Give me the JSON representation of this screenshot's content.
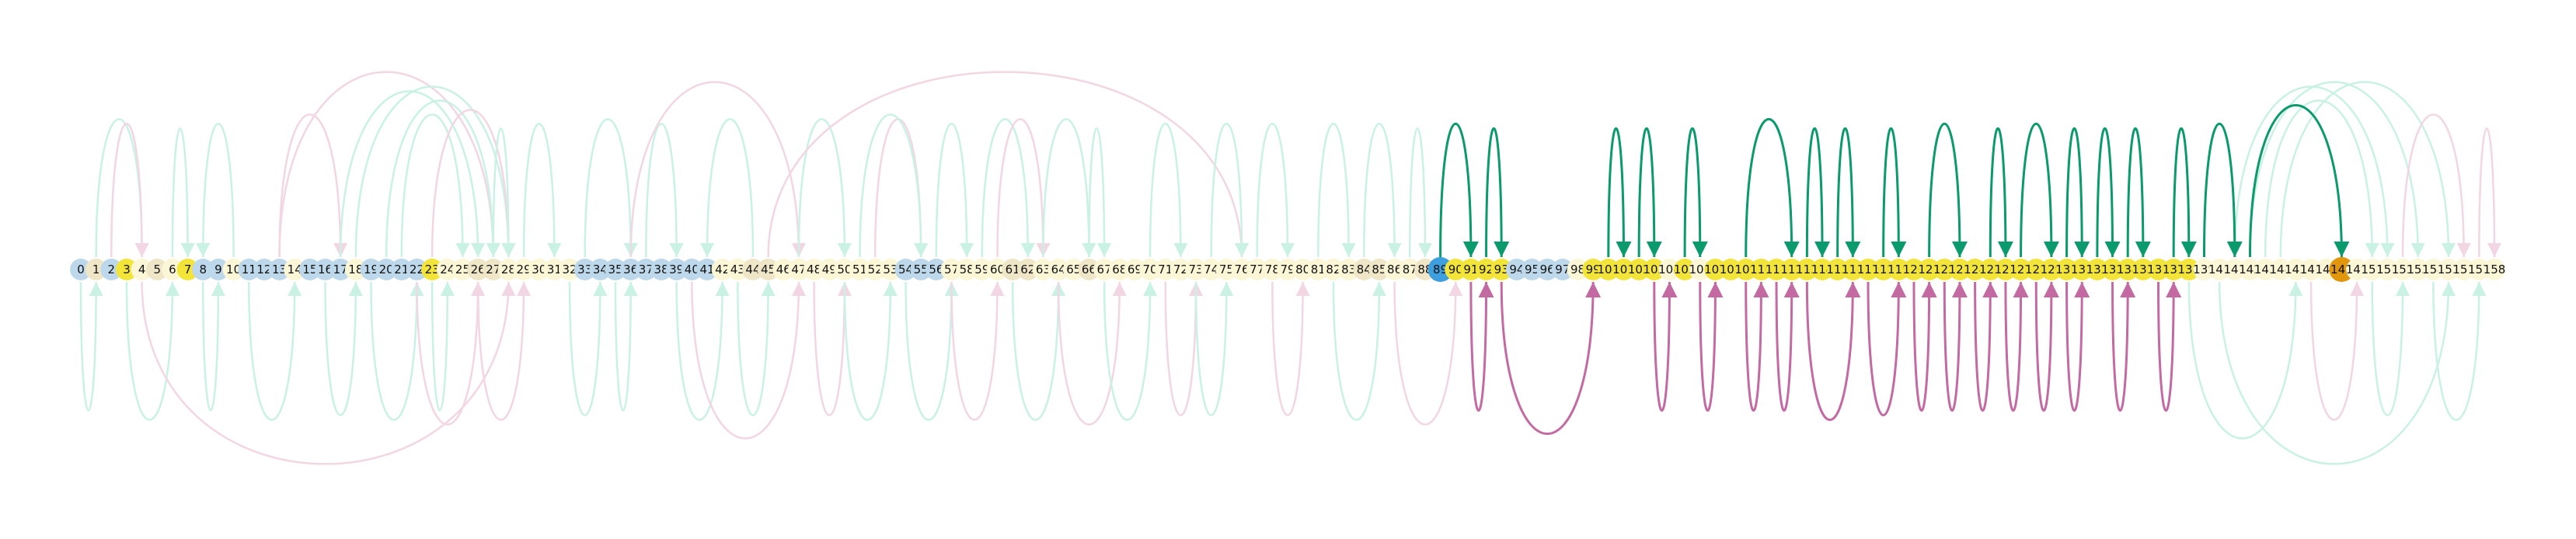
{
  "diagram": {
    "node_count": 159,
    "highlight_source": 89,
    "highlight_target": 148,
    "colors": {
      "node_blue": "#bcd8ea",
      "node_cream": "#fbf6d6",
      "node_tan": "#efe6c8",
      "node_yellow": "#f3e43a",
      "node_source": "#3d9fdd",
      "node_target": "#e0960d",
      "arc_green_faint": "#c9f1e4",
      "arc_pink_faint": "#f2d6e3",
      "arc_green_strong": "#0a9a6b",
      "arc_pink_strong": "#c36aa2",
      "label": "#111111"
    },
    "node_types": [
      "b",
      "t",
      "b",
      "y",
      "c",
      "t",
      "c",
      "y",
      "b",
      "b",
      "c",
      "b",
      "b",
      "b",
      "c",
      "b",
      "b",
      "b",
      "c",
      "b",
      "b",
      "b",
      "b",
      "y",
      "c",
      "c",
      "t",
      "t",
      "c",
      "c",
      "c",
      "c",
      "c",
      "b",
      "b",
      "b",
      "b",
      "b",
      "b",
      "b",
      "b",
      "b",
      "c",
      "c",
      "t",
      "t",
      "c",
      "c",
      "c",
      "c",
      "c",
      "c",
      "c",
      "c",
      "b",
      "b",
      "b",
      "c",
      "c",
      "c",
      "c",
      "t",
      "t",
      "c",
      "c",
      "c",
      "t",
      "c",
      "c",
      "c",
      "c",
      "c",
      "c",
      "c",
      "c",
      "c",
      "c",
      "c",
      "c",
      "c",
      "c",
      "c",
      "c",
      "c",
      "t",
      "t",
      "c",
      "c",
      "t",
      "s",
      "y",
      "y",
      "y",
      "y",
      "b",
      "b",
      "b",
      "b",
      "c",
      "y",
      "y",
      "y",
      "y",
      "y",
      "c",
      "y",
      "c",
      "y",
      "y",
      "y",
      "y",
      "y",
      "y",
      "y",
      "y",
      "y",
      "y",
      "y",
      "y",
      "y",
      "y",
      "y",
      "y",
      "y",
      "y",
      "y",
      "y",
      "y",
      "y",
      "y",
      "y",
      "y",
      "y",
      "y",
      "y",
      "y",
      "y",
      "y",
      "y",
      "c",
      "c",
      "c",
      "c",
      "c",
      "c",
      "c",
      "c",
      "c",
      "g",
      "c",
      "c",
      "c",
      "c",
      "c",
      "c",
      "c",
      "c",
      "c",
      "c"
    ],
    "arcs_up": [
      {
        "from": 1,
        "to": 4,
        "strong": false,
        "color": "green"
      },
      {
        "from": 2,
        "to": 4,
        "strong": false,
        "color": "pink"
      },
      {
        "from": 6,
        "to": 7,
        "strong": false,
        "color": "green"
      },
      {
        "from": 10,
        "to": 8,
        "strong": false,
        "color": "green"
      },
      {
        "from": 13,
        "to": 17,
        "strong": false,
        "color": "pink"
      },
      {
        "from": 13,
        "to": 27,
        "strong": false,
        "color": "pink"
      },
      {
        "from": 17,
        "to": 26,
        "strong": false,
        "color": "green"
      },
      {
        "from": 18,
        "to": 28,
        "strong": false,
        "color": "green"
      },
      {
        "from": 20,
        "to": 27,
        "strong": false,
        "color": "green"
      },
      {
        "from": 21,
        "to": 25,
        "strong": false,
        "color": "green"
      },
      {
        "from": 23,
        "to": 28,
        "strong": false,
        "color": "pink"
      },
      {
        "from": 27,
        "to": 28,
        "strong": false,
        "color": "green"
      },
      {
        "from": 29,
        "to": 31,
        "strong": false,
        "color": "green"
      },
      {
        "from": 33,
        "to": 36,
        "strong": false,
        "color": "green"
      },
      {
        "from": 37,
        "to": 39,
        "strong": false,
        "color": "green"
      },
      {
        "from": 36,
        "to": 47,
        "strong": false,
        "color": "pink"
      },
      {
        "from": 44,
        "to": 41,
        "strong": false,
        "color": "green"
      },
      {
        "from": 47,
        "to": 50,
        "strong": false,
        "color": "green"
      },
      {
        "from": 52,
        "to": 55,
        "strong": false,
        "color": "pink"
      },
      {
        "from": 51,
        "to": 55,
        "strong": false,
        "color": "green"
      },
      {
        "from": 45,
        "to": 76,
        "strong": false,
        "color": "pink"
      },
      {
        "from": 56,
        "to": 58,
        "strong": false,
        "color": "green"
      },
      {
        "from": 59,
        "to": 62,
        "strong": false,
        "color": "green"
      },
      {
        "from": 60,
        "to": 63,
        "strong": false,
        "color": "pink"
      },
      {
        "from": 63,
        "to": 66,
        "strong": false,
        "color": "green"
      },
      {
        "from": 66,
        "to": 67,
        "strong": false,
        "color": "green"
      },
      {
        "from": 70,
        "to": 72,
        "strong": false,
        "color": "green"
      },
      {
        "from": 74,
        "to": 76,
        "strong": false,
        "color": "green"
      },
      {
        "from": 77,
        "to": 79,
        "strong": false,
        "color": "green"
      },
      {
        "from": 81,
        "to": 83,
        "strong": false,
        "color": "green"
      },
      {
        "from": 84,
        "to": 86,
        "strong": false,
        "color": "green"
      },
      {
        "from": 87,
        "to": 88,
        "strong": false,
        "color": "green"
      },
      {
        "from": 89,
        "to": 91,
        "strong": true,
        "color": "green"
      },
      {
        "from": 92,
        "to": 93,
        "strong": true,
        "color": "green"
      },
      {
        "from": 100,
        "to": 101,
        "strong": true,
        "color": "green"
      },
      {
        "from": 102,
        "to": 103,
        "strong": true,
        "color": "green"
      },
      {
        "from": 105,
        "to": 106,
        "strong": true,
        "color": "green"
      },
      {
        "from": 109,
        "to": 112,
        "strong": true,
        "color": "green"
      },
      {
        "from": 113,
        "to": 114,
        "strong": true,
        "color": "green"
      },
      {
        "from": 115,
        "to": 116,
        "strong": true,
        "color": "green"
      },
      {
        "from": 118,
        "to": 119,
        "strong": true,
        "color": "green"
      },
      {
        "from": 121,
        "to": 123,
        "strong": true,
        "color": "green"
      },
      {
        "from": 125,
        "to": 126,
        "strong": true,
        "color": "green"
      },
      {
        "from": 127,
        "to": 129,
        "strong": true,
        "color": "green"
      },
      {
        "from": 130,
        "to": 131,
        "strong": true,
        "color": "green"
      },
      {
        "from": 132,
        "to": 133,
        "strong": true,
        "color": "green"
      },
      {
        "from": 134,
        "to": 135,
        "strong": true,
        "color": "green"
      },
      {
        "from": 137,
        "to": 138,
        "strong": true,
        "color": "green"
      },
      {
        "from": 139,
        "to": 141,
        "strong": true,
        "color": "green"
      },
      {
        "from": 142,
        "to": 148,
        "strong": true,
        "color": "green"
      },
      {
        "from": 141,
        "to": 151,
        "strong": false,
        "color": "green"
      },
      {
        "from": 142,
        "to": 153,
        "strong": false,
        "color": "green"
      },
      {
        "from": 143,
        "to": 150,
        "strong": false,
        "color": "green"
      },
      {
        "from": 144,
        "to": 155,
        "strong": false,
        "color": "green"
      },
      {
        "from": 152,
        "to": 156,
        "strong": false,
        "color": "pink"
      },
      {
        "from": 157,
        "to": 158,
        "strong": false,
        "color": "pink"
      }
    ],
    "arcs_down": [
      {
        "from": 0,
        "to": 1,
        "strong": false,
        "color": "green"
      },
      {
        "from": 3,
        "to": 6,
        "strong": false,
        "color": "green"
      },
      {
        "from": 4,
        "to": 28,
        "strong": false,
        "color": "pink"
      },
      {
        "from": 8,
        "to": 9,
        "strong": false,
        "color": "green"
      },
      {
        "from": 11,
        "to": 14,
        "strong": false,
        "color": "green"
      },
      {
        "from": 16,
        "to": 18,
        "strong": false,
        "color": "green"
      },
      {
        "from": 19,
        "to": 22,
        "strong": false,
        "color": "green"
      },
      {
        "from": 22,
        "to": 26,
        "strong": false,
        "color": "pink"
      },
      {
        "from": 23,
        "to": 24,
        "strong": false,
        "color": "green"
      },
      {
        "from": 26,
        "to": 29,
        "strong": false,
        "color": "pink"
      },
      {
        "from": 32,
        "to": 34,
        "strong": false,
        "color": "green"
      },
      {
        "from": 35,
        "to": 36,
        "strong": false,
        "color": "green"
      },
      {
        "from": 39,
        "to": 42,
        "strong": false,
        "color": "green"
      },
      {
        "from": 40,
        "to": 47,
        "strong": false,
        "color": "pink"
      },
      {
        "from": 43,
        "to": 45,
        "strong": false,
        "color": "green"
      },
      {
        "from": 48,
        "to": 50,
        "strong": false,
        "color": "pink"
      },
      {
        "from": 50,
        "to": 53,
        "strong": false,
        "color": "green"
      },
      {
        "from": 54,
        "to": 57,
        "strong": false,
        "color": "green"
      },
      {
        "from": 57,
        "to": 60,
        "strong": false,
        "color": "pink"
      },
      {
        "from": 61,
        "to": 64,
        "strong": false,
        "color": "green"
      },
      {
        "from": 64,
        "to": 68,
        "strong": false,
        "color": "pink"
      },
      {
        "from": 67,
        "to": 70,
        "strong": false,
        "color": "green"
      },
      {
        "from": 71,
        "to": 73,
        "strong": false,
        "color": "pink"
      },
      {
        "from": 73,
        "to": 75,
        "strong": false,
        "color": "green"
      },
      {
        "from": 78,
        "to": 80,
        "strong": false,
        "color": "pink"
      },
      {
        "from": 82,
        "to": 85,
        "strong": false,
        "color": "green"
      },
      {
        "from": 86,
        "to": 90,
        "strong": false,
        "color": "pink"
      },
      {
        "from": 91,
        "to": 92,
        "strong": true,
        "color": "pink"
      },
      {
        "from": 93,
        "to": 99,
        "strong": true,
        "color": "pink"
      },
      {
        "from": 103,
        "to": 104,
        "strong": true,
        "color": "pink"
      },
      {
        "from": 106,
        "to": 107,
        "strong": true,
        "color": "pink"
      },
      {
        "from": 109,
        "to": 110,
        "strong": true,
        "color": "pink"
      },
      {
        "from": 111,
        "to": 112,
        "strong": true,
        "color": "pink"
      },
      {
        "from": 113,
        "to": 116,
        "strong": true,
        "color": "pink"
      },
      {
        "from": 117,
        "to": 119,
        "strong": true,
        "color": "pink"
      },
      {
        "from": 120,
        "to": 121,
        "strong": true,
        "color": "pink"
      },
      {
        "from": 122,
        "to": 123,
        "strong": true,
        "color": "pink"
      },
      {
        "from": 124,
        "to": 125,
        "strong": true,
        "color": "pink"
      },
      {
        "from": 126,
        "to": 127,
        "strong": true,
        "color": "pink"
      },
      {
        "from": 128,
        "to": 129,
        "strong": true,
        "color": "pink"
      },
      {
        "from": 130,
        "to": 131,
        "strong": true,
        "color": "pink"
      },
      {
        "from": 133,
        "to": 134,
        "strong": true,
        "color": "pink"
      },
      {
        "from": 136,
        "to": 137,
        "strong": true,
        "color": "pink"
      },
      {
        "from": 138,
        "to": 145,
        "strong": false,
        "color": "green"
      },
      {
        "from": 140,
        "to": 155,
        "strong": false,
        "color": "green"
      },
      {
        "from": 146,
        "to": 149,
        "strong": false,
        "color": "pink"
      },
      {
        "from": 150,
        "to": 152,
        "strong": false,
        "color": "green"
      },
      {
        "from": 154,
        "to": 157,
        "strong": false,
        "color": "green"
      }
    ]
  }
}
